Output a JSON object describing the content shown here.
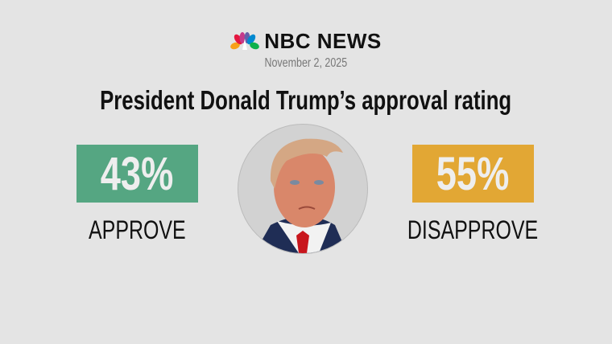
{
  "header": {
    "brand": "NBC NEWS",
    "date": "November 2, 2025"
  },
  "title": "President Donald Trump’s approval rating",
  "results": {
    "approve": {
      "value": "43%",
      "label": "APPROVE",
      "color": "#55a682"
    },
    "disapprove": {
      "value": "55%",
      "label": "DISAPPROVE",
      "color": "#e2a734"
    }
  },
  "icons": {
    "logo": "nbc-peacock-icon",
    "portrait": "portrait-photo"
  }
}
